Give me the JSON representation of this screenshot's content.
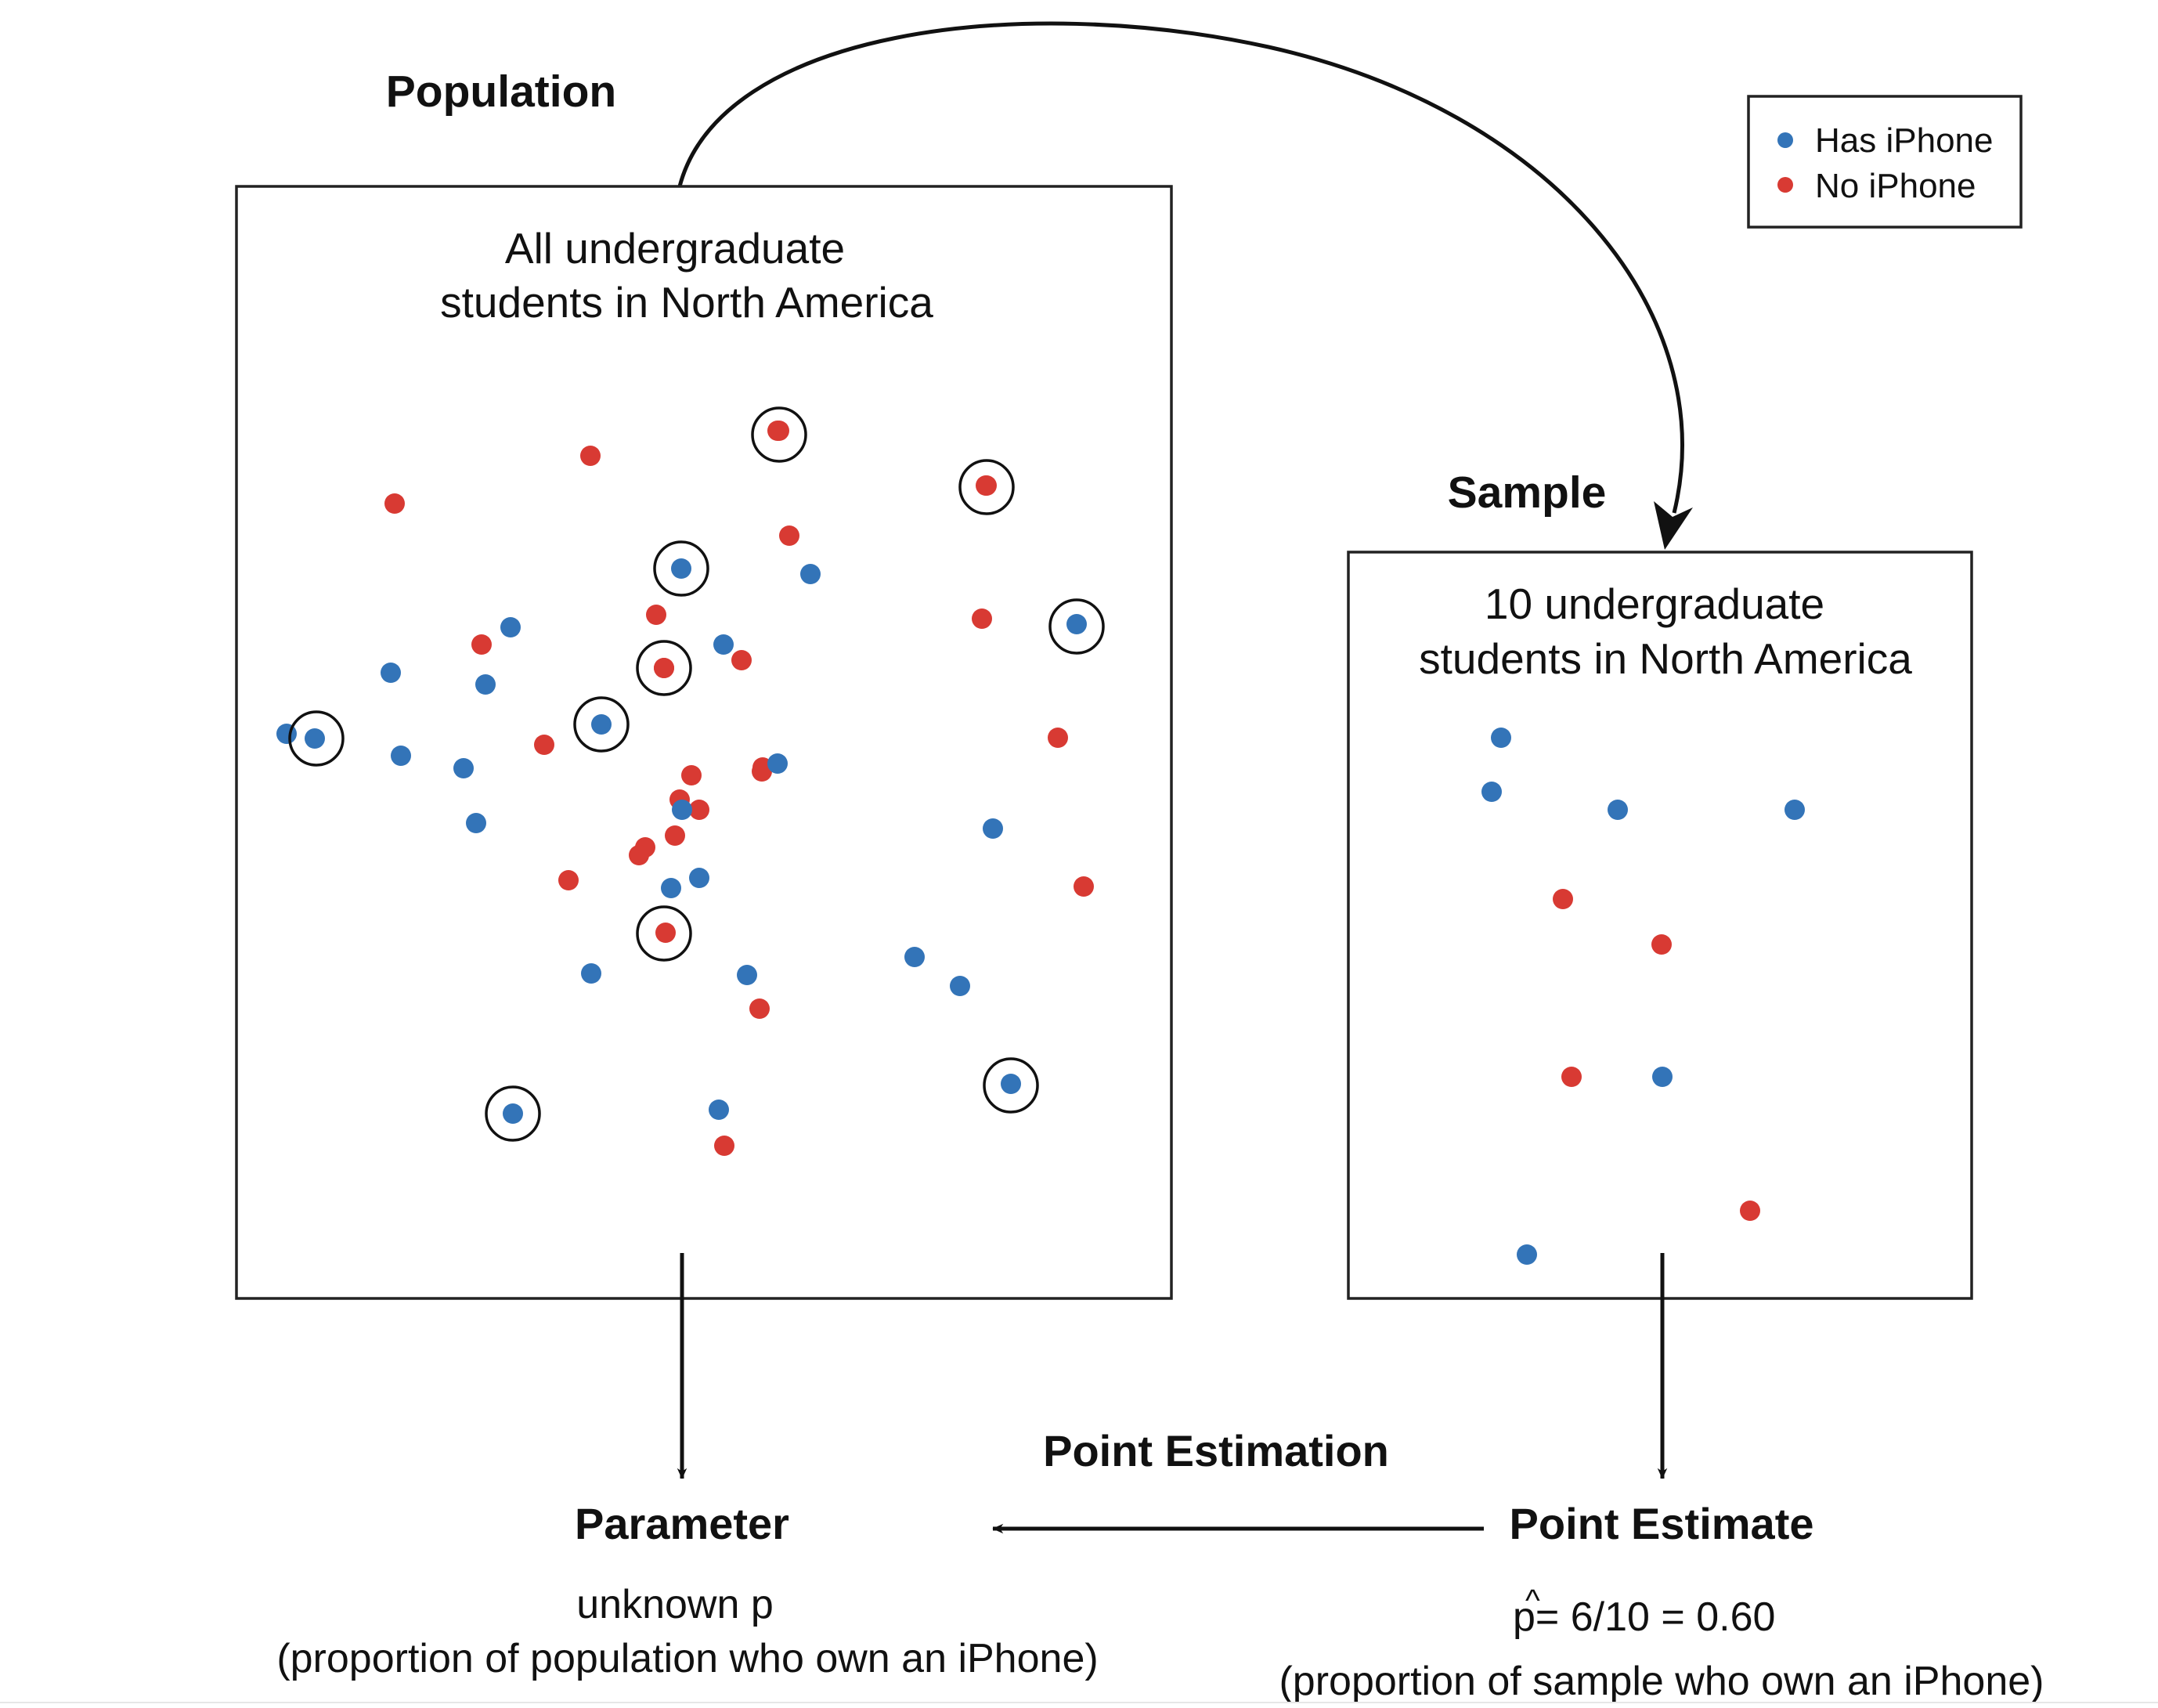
{
  "colors": {
    "has_iphone": "#3374b8",
    "no_iphone": "#d83a33",
    "ink": "#111111"
  },
  "population": {
    "heading": "Population",
    "line1": "All undergraduate",
    "line2": "students in North America"
  },
  "sample": {
    "heading": "Sample",
    "line1": "10 undergraduate",
    "line2": "students in North America"
  },
  "legend": {
    "items": [
      {
        "label": "Has iPhone",
        "group": "has"
      },
      {
        "label": "No iPhone",
        "group": "no"
      }
    ]
  },
  "parameter": {
    "title": "Parameter",
    "line1": "unknown p",
    "line2": "(proportion of population who own an iPhone)"
  },
  "point_estimation": {
    "label": "Point Estimation"
  },
  "point_estimate": {
    "title": "Point Estimate",
    "hat": "^",
    "formula": "p= 6/10 = 0.60",
    "line2": "(proportion of sample who own an iPhone)"
  }
}
